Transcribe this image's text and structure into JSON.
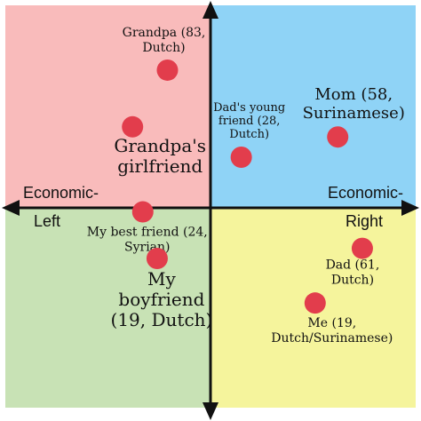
{
  "chart_data": {
    "type": "scatter",
    "title": "",
    "xlim": [
      -10,
      10
    ],
    "ylim": [
      -10,
      10
    ],
    "grid": false,
    "axis_labels": {
      "left_top": "Economic-",
      "left_bottom": "Left",
      "right_top": "Economic-",
      "right_bottom": "Right"
    },
    "quadrant_colors": {
      "top_left": "#f9bbbb",
      "top_right": "#8fd3f6",
      "bottom_left": "#c8e2b5",
      "bottom_right": "#f5f49c"
    },
    "point_color": "#e23d4c",
    "points": [
      {
        "name": "grandpa",
        "label": [
          "Grandpa (83,",
          "Dutch)"
        ],
        "x": -2.1,
        "y": 6.8,
        "size": "small"
      },
      {
        "name": "grandpas-gf",
        "label": [
          "Grandpa's",
          "girlfriend"
        ],
        "x": -3.8,
        "y": 4.0,
        "size": "large"
      },
      {
        "name": "dads-young-friend",
        "label": [
          "Dad's young",
          "friend (28,",
          "Dutch)"
        ],
        "x": 1.5,
        "y": 2.5,
        "size": "xsmall"
      },
      {
        "name": "mom",
        "label": [
          "Mom (58,",
          "Surinamese)"
        ],
        "x": 6.2,
        "y": 3.5,
        "size": "medium"
      },
      {
        "name": "best-friend",
        "label": [
          "My best friend (24,",
          "Syrian)"
        ],
        "x": -3.3,
        "y": -0.2,
        "size": "small"
      },
      {
        "name": "boyfriend",
        "label": [
          "My",
          "boyfriend",
          "(19, Dutch)"
        ],
        "x": -2.6,
        "y": -2.5,
        "size": "large"
      },
      {
        "name": "dad",
        "label": [
          "Dad (61,",
          "Dutch)"
        ],
        "x": 7.4,
        "y": -2.0,
        "size": "small"
      },
      {
        "name": "me",
        "label": [
          "Me (19,",
          "Dutch/Surinamese)"
        ],
        "x": 5.1,
        "y": -4.7,
        "size": "small"
      }
    ]
  }
}
